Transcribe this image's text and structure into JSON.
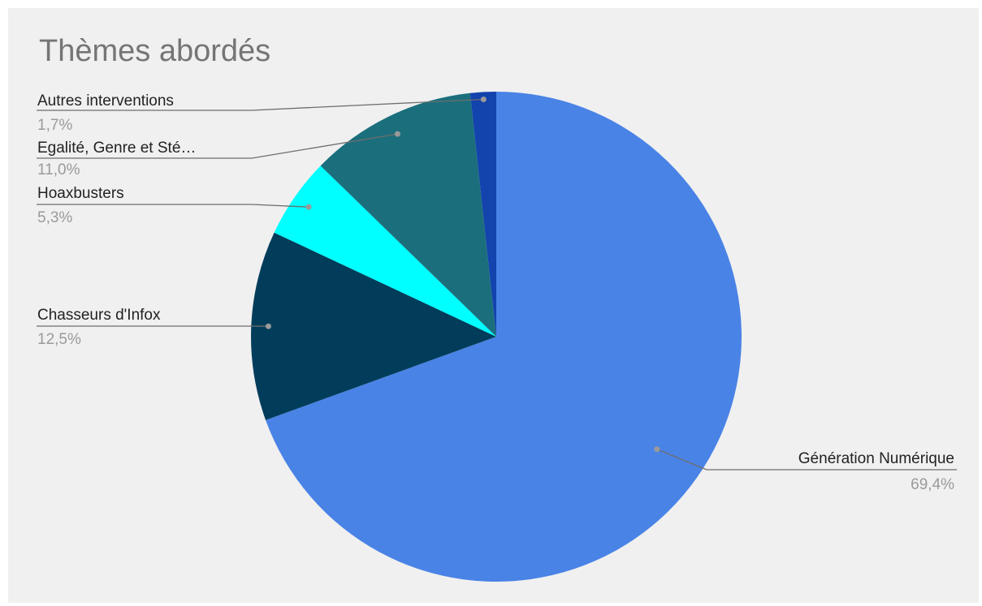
{
  "chart_data": {
    "type": "pie",
    "title": "Thèmes abordés",
    "start_angle_deg": 0,
    "direction": "clockwise",
    "legend": "labels-outside",
    "slices": [
      {
        "label": "Génération Numérique",
        "value": 69.4,
        "display": "69,4%",
        "color": "#4a83e6"
      },
      {
        "label": "Chasseurs d'Infox",
        "value": 12.5,
        "display": "12,5%",
        "color": "#013d5a"
      },
      {
        "label": "Hoaxbusters",
        "value": 5.3,
        "display": "5,3%",
        "color": "#00ffff"
      },
      {
        "label": "Egalité, Genre et Sté…",
        "value": 11.0,
        "display": "11,0%",
        "color": "#1b6f7d"
      },
      {
        "label": "Autres interventions",
        "value": 1.7,
        "display": "1,7%",
        "color": "#1343ad"
      }
    ]
  }
}
